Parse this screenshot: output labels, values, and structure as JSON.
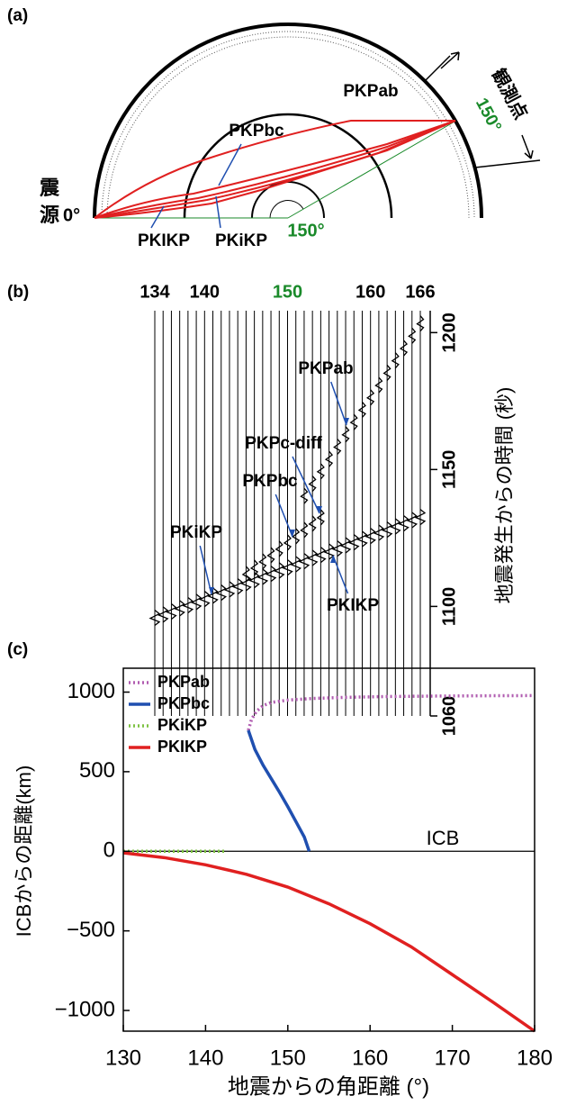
{
  "diagram": {
    "label": "(a)",
    "source_label": [
      "震",
      "源"
    ],
    "source_angle": "0°",
    "station_label": "観測点",
    "station_angle": "150°",
    "center_angle": "150°",
    "phases": [
      "PKPab",
      "PKPbc",
      "PKIKP",
      "PKiKP"
    ]
  },
  "chart_data": [
    {
      "type": "wiggle",
      "label": "(b)",
      "ylabel": "地震発生からの時間 (秒)",
      "x": [
        134,
        135,
        136,
        137,
        138,
        139,
        140,
        141,
        142,
        143,
        144,
        145,
        146,
        147,
        148,
        149,
        150,
        151,
        152,
        153,
        154,
        155,
        156,
        157,
        158,
        159,
        160,
        161,
        162,
        163,
        164,
        165,
        166
      ],
      "xlim": [
        134,
        166
      ],
      "xticks": [
        134,
        140,
        150,
        160,
        166
      ],
      "xtick_colors": [
        "#000000",
        "#000000",
        "#1a8a2a",
        "#000000",
        "#000000"
      ],
      "ylim": [
        1060,
        1208
      ],
      "yticks": [
        1060,
        1100,
        1150,
        1200
      ],
      "series": [
        {
          "name": "PKIKP",
          "values": [
            1096,
            1097.2,
            1098.3,
            1099.5,
            1100.6,
            1101.8,
            1102.9,
            1104.1,
            1105.2,
            1106.4,
            1107.5,
            1108.7,
            1109.8,
            1111,
            1112.1,
            1113.3,
            1114.4,
            1115.6,
            1116.7,
            1117.9,
            1119,
            1120.2,
            1121.3,
            1122.5,
            1123.6,
            1124.8,
            1125.9,
            1127.1,
            1128.2,
            1129.4,
            1130.5,
            1131.7,
            1132.8
          ]
        },
        {
          "name": "PKPbc",
          "values": [
            null,
            null,
            null,
            null,
            null,
            null,
            null,
            null,
            null,
            null,
            null,
            1112,
            1114.3,
            1116.6,
            1118.9,
            1121.2,
            1123.5,
            1125.8,
            1128.1,
            1130.4,
            1132.7,
            null,
            null,
            null,
            null,
            null,
            null,
            null,
            null,
            null,
            null,
            null,
            null
          ]
        },
        {
          "name": "PKPab",
          "values": [
            null,
            null,
            null,
            null,
            null,
            null,
            null,
            null,
            null,
            null,
            null,
            null,
            null,
            null,
            null,
            null,
            null,
            null,
            1140.5,
            1145,
            1149.5,
            1154,
            1158.5,
            1163,
            1167.5,
            1172,
            1176.5,
            1181,
            1185.5,
            1190,
            1194.5,
            1199,
            1203.5
          ]
        }
      ],
      "annotations": [
        "PKiKP",
        "PKPc-diff"
      ]
    },
    {
      "type": "line",
      "label": "(c)",
      "xlabel": "地震からの角距離 (°)",
      "ylabel": "ICBからの距離(km)",
      "annotation": "ICB",
      "xlim": [
        130,
        180
      ],
      "xticks": [
        130,
        140,
        150,
        160,
        170,
        180
      ],
      "ylim": [
        -1130,
        1150
      ],
      "yticks": [
        {
          "value": -1000,
          "label": "−1000"
        },
        {
          "value": -500,
          "label": "−500"
        },
        0,
        500,
        1000
      ],
      "legend": "upper left",
      "series": [
        {
          "name": "PKPab",
          "color": "#b05cb0",
          "dashed": true,
          "x": [
            145.2,
            145.6,
            146.2,
            147,
            148,
            150,
            153,
            157,
            162,
            168,
            174,
            180
          ],
          "values": [
            760,
            830,
            880,
            915,
            935,
            950,
            960,
            967,
            972,
            975,
            977,
            978
          ]
        },
        {
          "name": "PKPbc",
          "color": "#1f4fb0",
          "dashed": false,
          "x": [
            145.2,
            146,
            147,
            148,
            149,
            150,
            151,
            152,
            152.6
          ],
          "values": [
            760,
            640,
            540,
            455,
            370,
            280,
            185,
            90,
            0
          ]
        },
        {
          "name": "PKiKP",
          "color": "#7dc242",
          "dashed": true,
          "x": [
            130,
            142.5
          ],
          "values": [
            0,
            0
          ]
        },
        {
          "name": "PKIKP",
          "color": "#e02020",
          "dashed": false,
          "x": [
            130,
            135,
            140,
            145,
            150,
            155,
            160,
            165,
            170,
            175,
            180
          ],
          "values": [
            -10,
            -40,
            -85,
            -145,
            -225,
            -330,
            -455,
            -600,
            -775,
            -950,
            -1130
          ]
        }
      ]
    }
  ]
}
